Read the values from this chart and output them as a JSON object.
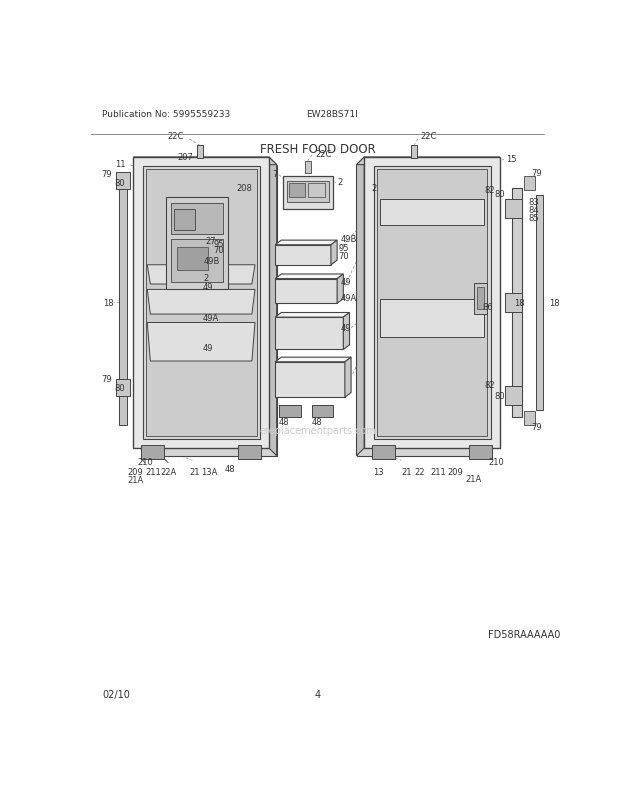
{
  "title": "FRESH FOOD DOOR",
  "pub_no": "Publication No: 5995559233",
  "model": "EW28BS71I",
  "diagram_code": "FD58RAAAAA0",
  "date": "02/10",
  "page": "4",
  "bg_color": "#ffffff",
  "lc": "#444444",
  "tc": "#333333",
  "fill_light": "#e0e0e0",
  "fill_mid": "#c8c8c8",
  "fill_dark": "#a8a8a8",
  "fill_white": "#f5f5f5"
}
